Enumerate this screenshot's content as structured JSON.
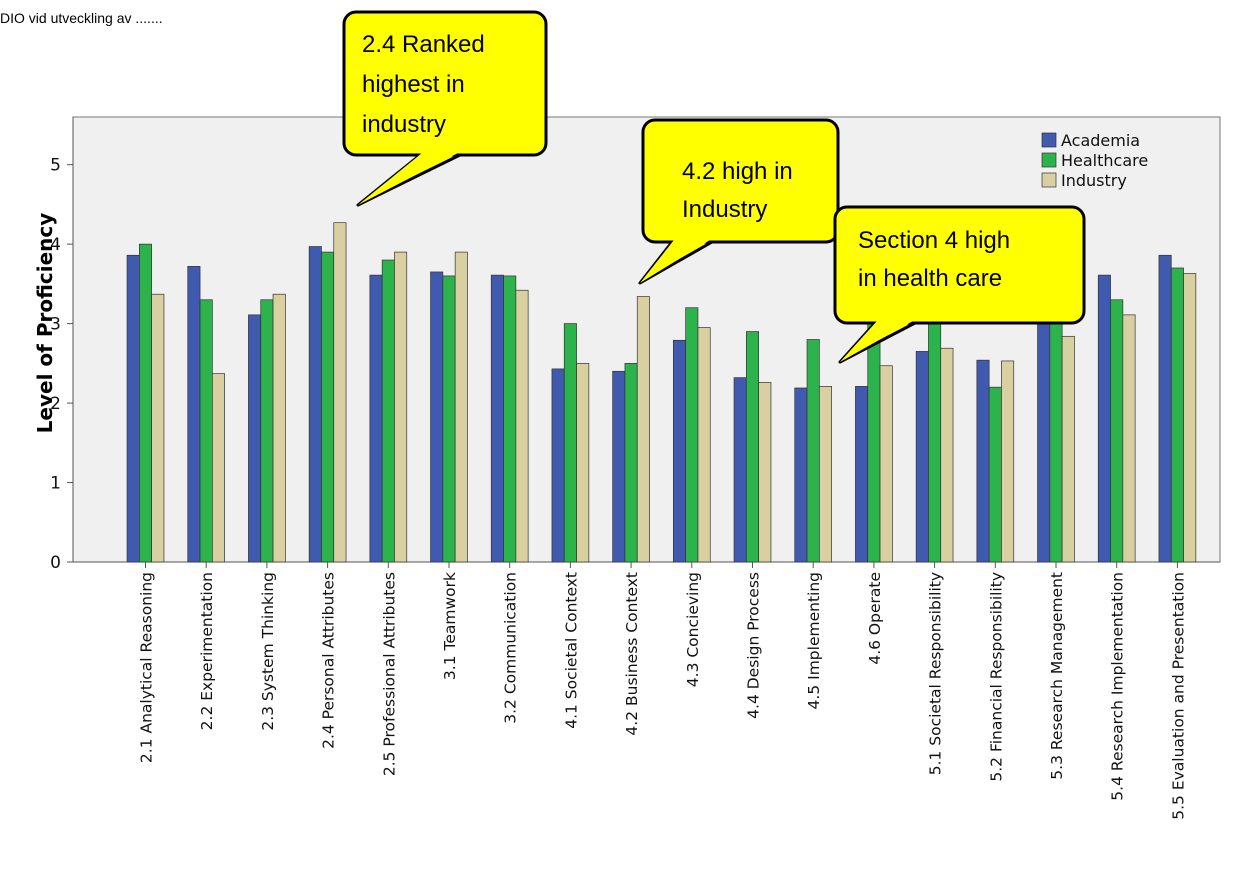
{
  "page_header": "DIO vid utveckling av .......",
  "chart_data": {
    "type": "bar",
    "title": "",
    "xlabel": "",
    "ylabel": "Level of Proficiency",
    "ylim": [
      0,
      5.6
    ],
    "yticks": [
      0,
      1,
      2,
      3,
      4,
      5
    ],
    "grid": false,
    "legend_position": "top-right",
    "categories": [
      "2.1 Analytical Reasoning",
      "2.2 Experimentation",
      "2.3 System Thinking",
      "2.4 Personal Attributes",
      "2.5 Professional Attributes",
      "3.1 Teamwork",
      "3.2 Communication",
      "4.1 Societal Context",
      "4.2 Business Context",
      "4.3 Concieving",
      "4.4 Design Process",
      "4.5 Implementing",
      "4.6 Operate",
      "5.1 Societal Responsibility",
      "5.2 Financial Responsibility",
      "5.3 Research Management",
      "5.4 Research Implementation",
      "5.5 Evaluation and Presentation"
    ],
    "series": [
      {
        "name": "Academia",
        "color": "#3F5AAE",
        "values": [
          3.86,
          3.72,
          3.11,
          3.97,
          3.61,
          3.65,
          3.61,
          2.43,
          2.4,
          2.79,
          2.32,
          2.19,
          2.21,
          2.65,
          2.54,
          3.1,
          3.61,
          3.86
        ]
      },
      {
        "name": "Healthcare",
        "color": "#2DB34C",
        "values": [
          4.0,
          3.3,
          3.3,
          3.9,
          3.8,
          3.6,
          3.6,
          3.0,
          2.5,
          3.2,
          2.9,
          2.8,
          3.0,
          3.0,
          2.2,
          3.3,
          3.3,
          3.7
        ]
      },
      {
        "name": "Industry",
        "color": "#D9D0A1",
        "values": [
          3.37,
          2.37,
          3.37,
          4.27,
          3.9,
          3.9,
          3.42,
          2.5,
          3.34,
          2.95,
          2.26,
          2.21,
          2.47,
          2.69,
          2.53,
          2.84,
          3.11,
          3.63
        ]
      }
    ],
    "annotations": [
      {
        "lines": [
          "2.4 Ranked",
          "highest in",
          "industry"
        ]
      },
      {
        "lines": [
          "4.2 high in",
          "Industry"
        ]
      },
      {
        "lines": [
          "Section 4 high",
          "in health care"
        ]
      }
    ]
  }
}
